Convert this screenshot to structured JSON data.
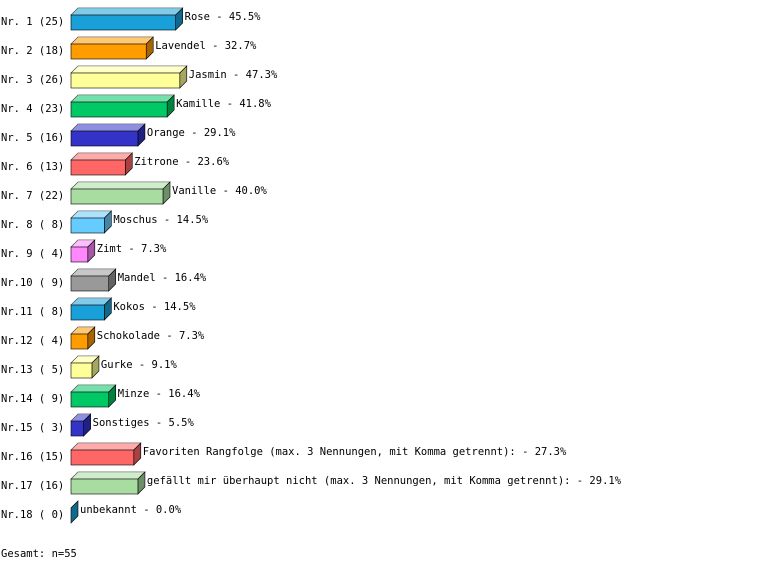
{
  "chart_data": {
    "type": "bar3d",
    "categories": [
      "Nr. 1 (25)",
      "Nr. 2 (18)",
      "Nr. 3 (26)",
      "Nr. 4 (23)",
      "Nr. 5 (16)",
      "Nr. 6 (13)",
      "Nr. 7 (22)",
      "Nr. 8 ( 8)",
      "Nr. 9 ( 4)",
      "Nr.10 ( 9)",
      "Nr.11 ( 8)",
      "Nr.12 ( 4)",
      "Nr.13 ( 5)",
      "Nr.14 ( 9)",
      "Nr.15 ( 3)",
      "Nr.16 (15)",
      "Nr.17 (16)",
      "Nr.18 ( 0)"
    ],
    "values": [
      45.5,
      32.7,
      47.3,
      41.8,
      29.1,
      23.6,
      40.0,
      14.5,
      7.3,
      16.4,
      14.5,
      7.3,
      9.1,
      16.4,
      5.5,
      27.3,
      29.1,
      0.0
    ],
    "value_labels": [
      "Rose -  45.5%",
      "Lavendel -  32.7%",
      "Jasmin -  47.3%",
      "Kamille -  41.8%",
      "Orange -  29.1%",
      "Zitrone -  23.6%",
      "Vanille -  40.0%",
      "Moschus -  14.5%",
      "Zimt -   7.3%",
      "Mandel -  16.4%",
      "Kokos -  14.5%",
      "Schokolade -   7.3%",
      "Gurke -   9.1%",
      "Minze -  16.4%",
      "Sonstiges -   5.5%",
      "Favoriten Rangfolge (max. 3 Nennungen, mit Komma getrennt): -  27.3%",
      "gefällt mir überhaupt nicht (max. 3 Nennungen, mit Komma getrennt): -  29.1%",
      "unbekannt -   0.0%"
    ],
    "colors": [
      "#1aa0d8",
      "#ff9c00",
      "#ffff99",
      "#00c864",
      "#3333c8",
      "#ff6666",
      "#a8dca0",
      "#66ccff",
      "#ff88ff",
      "#999999",
      "#1aa0d8",
      "#ff9c00",
      "#ffff99",
      "#00c864",
      "#3333c8",
      "#ff6666",
      "#a8dca0",
      "#1aa0d8"
    ],
    "footer": "Gesamt: n=55"
  }
}
